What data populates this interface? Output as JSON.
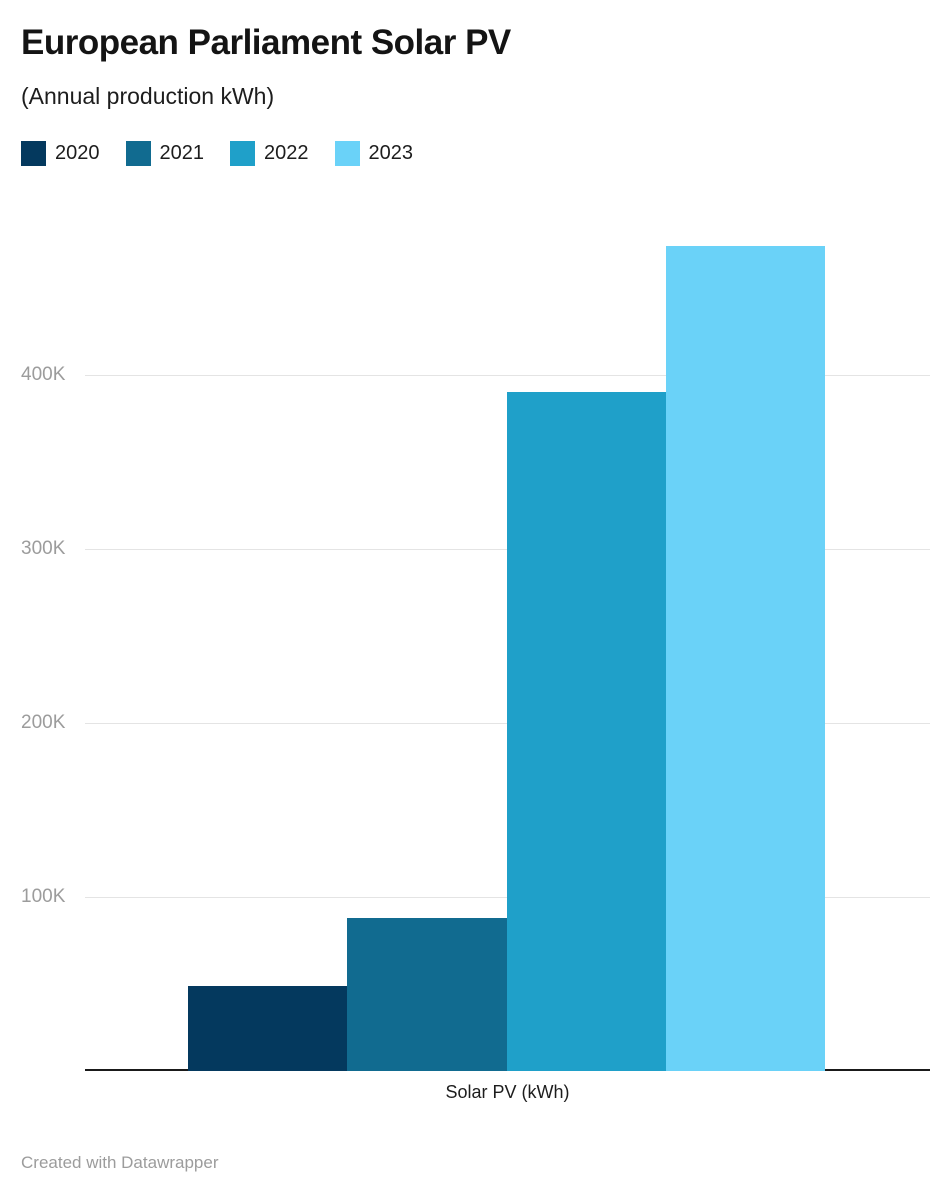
{
  "chart_data": {
    "type": "bar",
    "title": "European Parliament Solar PV",
    "subtitle": "(Annual production kWh)",
    "categories": [
      "Solar PV (kWh)"
    ],
    "series": [
      {
        "name": "2020",
        "color": "#04395e",
        "values": [
          49000
        ]
      },
      {
        "name": "2021",
        "color": "#116b90",
        "values": [
          88000
        ]
      },
      {
        "name": "2022",
        "color": "#1fa0c9",
        "values": [
          390000
        ]
      },
      {
        "name": "2023",
        "color": "#6ad2f8",
        "values": [
          474000
        ]
      }
    ],
    "xlabel": "Solar PV (kWh)",
    "ylabel": "",
    "ylim": [
      0,
      500000
    ],
    "yticks": [
      {
        "value": 100000,
        "label": "100K"
      },
      {
        "value": 200000,
        "label": "200K"
      },
      {
        "value": 300000,
        "label": "300K"
      },
      {
        "value": 400000,
        "label": "400K"
      }
    ],
    "grid": true,
    "legend_position": "top"
  },
  "footer": {
    "credit": "Created with Datawrapper"
  }
}
